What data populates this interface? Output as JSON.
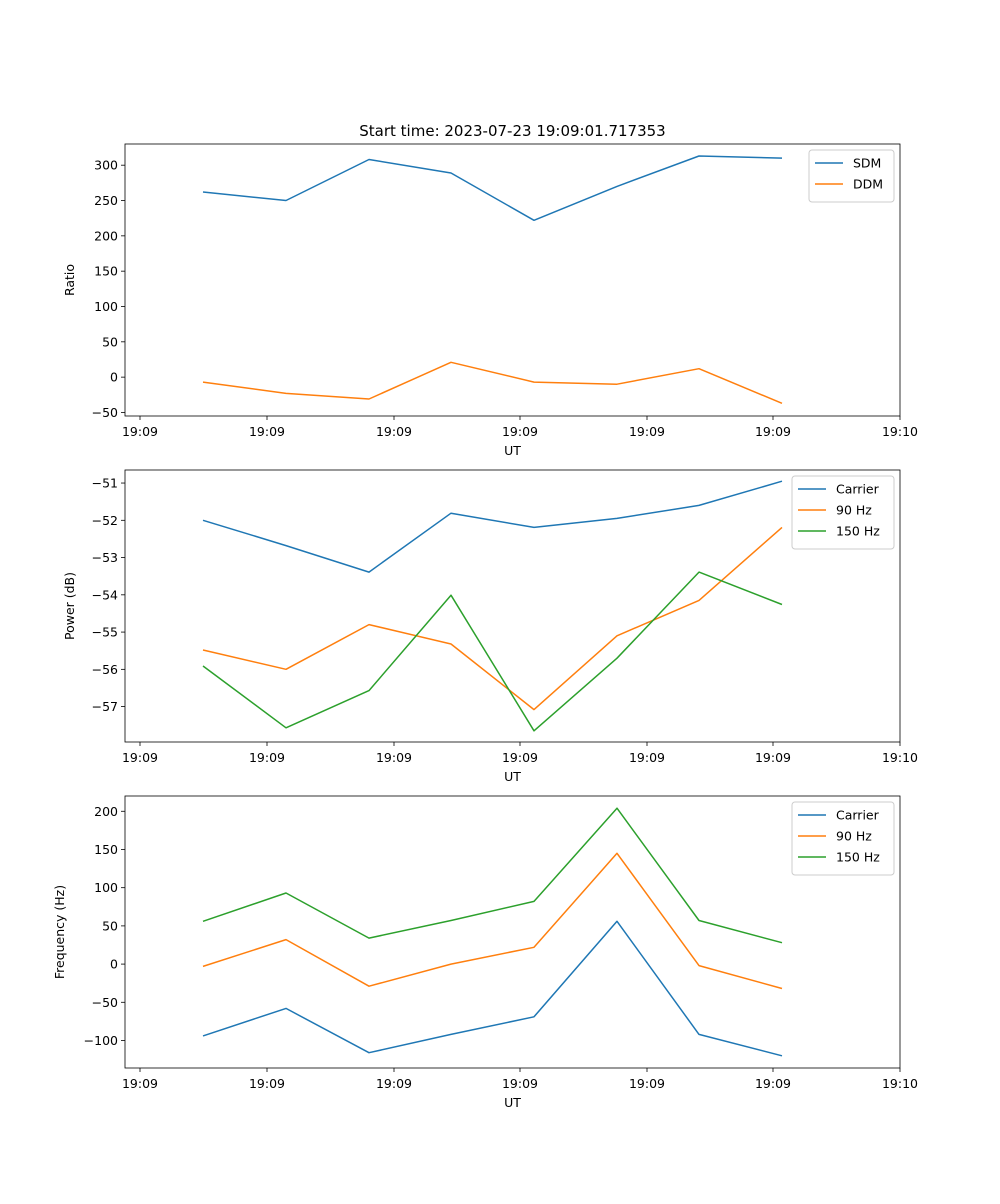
{
  "chart_data": [
    {
      "type": "line",
      "title": "Start time: 2023-07-23 19:09:01.717353",
      "xlabel": "UT",
      "ylabel": "Ratio",
      "x_tick_labels": [
        "19:09",
        "19:09",
        "19:09",
        "19:09",
        "19:09",
        "19:09",
        "19:10"
      ],
      "y_ticks": [
        -50,
        0,
        50,
        100,
        150,
        200,
        250,
        300
      ],
      "ylim": [
        -55,
        330
      ],
      "legend_position": "top-right",
      "series": [
        {
          "name": "SDM",
          "color": "#1f77b4",
          "values": [
            262,
            250,
            308,
            289,
            222,
            270,
            313,
            310
          ]
        },
        {
          "name": "DDM",
          "color": "#ff7f0e",
          "values": [
            -7,
            -23,
            -31,
            21,
            -7,
            -10,
            12,
            -37
          ]
        }
      ]
    },
    {
      "type": "line",
      "title": "",
      "xlabel": "UT",
      "ylabel": "Power (dB)",
      "x_tick_labels": [
        "19:09",
        "19:09",
        "19:09",
        "19:09",
        "19:09",
        "19:09",
        "19:10"
      ],
      "y_ticks": [
        -57,
        -56,
        -55,
        -54,
        -53,
        -52,
        -51
      ],
      "ylim": [
        -57.95,
        -50.65
      ],
      "legend_position": "top-right",
      "series": [
        {
          "name": "Carrier",
          "color": "#1f77b4",
          "values": [
            -52.0,
            -52.68,
            -53.39,
            -51.81,
            -52.19,
            -51.95,
            -51.6,
            -50.95
          ]
        },
        {
          "name": "90 Hz",
          "color": "#ff7f0e",
          "values": [
            -55.48,
            -56.0,
            -54.8,
            -55.32,
            -57.08,
            -55.1,
            -54.15,
            -52.19
          ]
        },
        {
          "name": "150 Hz",
          "color": "#2ca02c",
          "values": [
            -55.91,
            -57.57,
            -56.57,
            -54.01,
            -57.65,
            -55.7,
            -53.39,
            -54.26
          ]
        }
      ]
    },
    {
      "type": "line",
      "title": "",
      "xlabel": "UT",
      "ylabel": "Frequency (Hz)",
      "x_tick_labels": [
        "19:09",
        "19:09",
        "19:09",
        "19:09",
        "19:09",
        "19:09",
        "19:10"
      ],
      "y_ticks": [
        -100,
        -50,
        0,
        50,
        100,
        150,
        200
      ],
      "ylim": [
        -136,
        220
      ],
      "legend_position": "top-right",
      "series": [
        {
          "name": "Carrier",
          "color": "#1f77b4",
          "values": [
            -94,
            -58,
            -116,
            -92,
            -69,
            56,
            -92,
            -120
          ]
        },
        {
          "name": "90 Hz",
          "color": "#ff7f0e",
          "values": [
            -3,
            32,
            -29,
            0,
            22,
            145,
            -2,
            -32
          ]
        },
        {
          "name": "150 Hz",
          "color": "#2ca02c",
          "values": [
            56,
            93,
            34,
            57,
            82,
            204,
            57,
            28
          ]
        }
      ]
    }
  ]
}
